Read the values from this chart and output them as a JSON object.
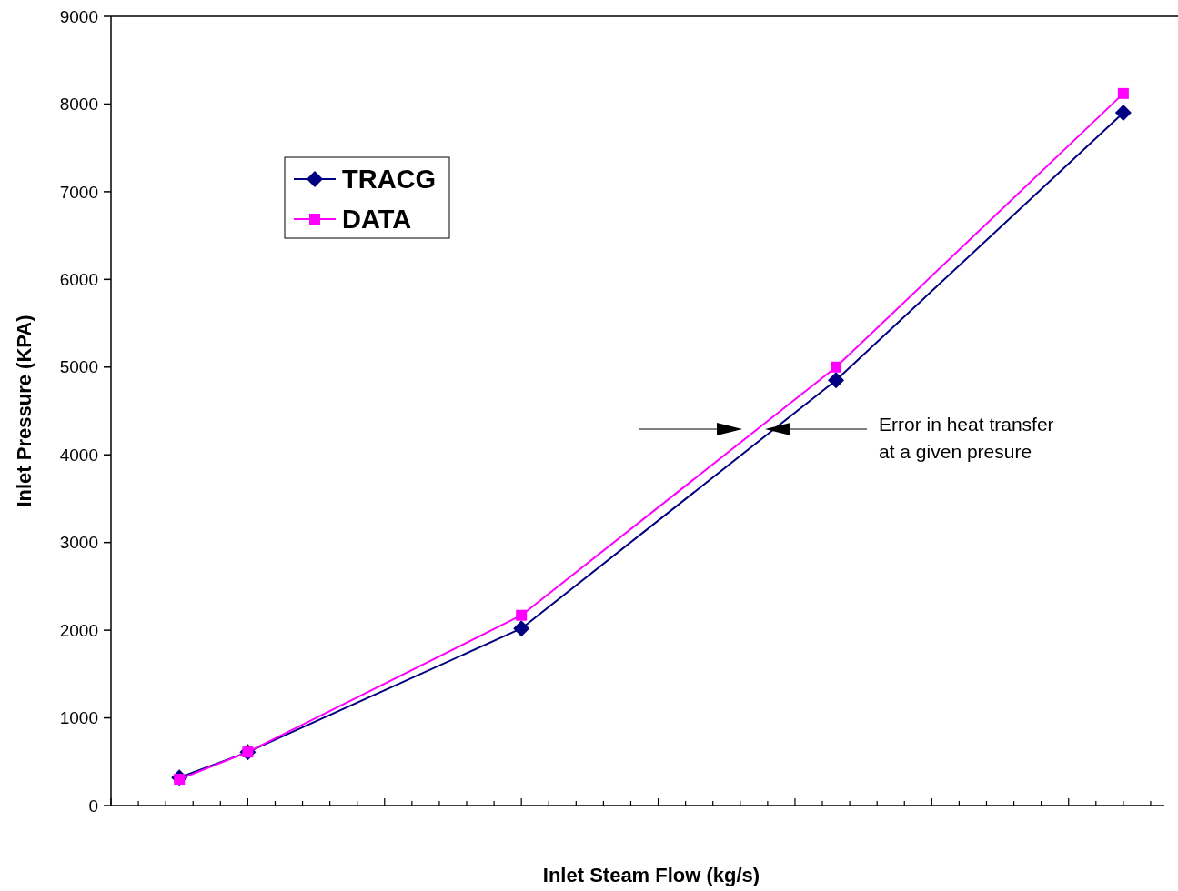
{
  "chart_data": {
    "type": "line",
    "xlabel": "Inlet Steam Flow (kg/s)",
    "ylabel": "Inlet Pressure (KPA)",
    "categories": [
      null,
      null,
      null,
      null,
      null,
      null,
      null,
      null,
      null,
      null,
      null,
      null,
      null,
      null,
      null,
      null,
      null,
      null,
      null,
      null,
      null,
      null,
      null,
      null,
      null,
      null,
      null,
      null,
      null,
      null,
      null,
      null,
      null,
      null,
      null,
      null,
      null,
      null,
      null,
      null,
      null,
      null,
      null,
      null,
      null,
      null,
      null,
      null,
      null,
      null,
      null,
      null,
      null,
      null,
      null,
      null,
      null,
      null,
      null,
      null,
      null,
      null,
      null,
      null,
      null,
      null,
      null,
      null,
      null,
      null,
      null,
      null,
      null,
      null,
      null,
      null,
      null,
      null
    ],
    "series": [
      {
        "name": "TRACG",
        "color": "#000080",
        "marker": "diamond",
        "values": [
          null,
          null,
          null,
          null,
          null,
          320,
          null,
          null,
          null,
          null,
          610,
          null,
          null,
          null,
          null,
          null,
          null,
          null,
          null,
          null,
          null,
          null,
          null,
          null,
          null,
          null,
          null,
          null,
          null,
          null,
          2020,
          null,
          null,
          null,
          null,
          null,
          null,
          null,
          null,
          null,
          null,
          null,
          null,
          null,
          null,
          null,
          null,
          null,
          null,
          null,
          null,
          null,
          null,
          4850,
          null,
          null,
          null,
          null,
          null,
          null,
          null,
          null,
          null,
          null,
          null,
          null,
          null,
          null,
          null,
          null,
          null,
          null,
          null,
          null,
          7900,
          null,
          null,
          null
        ]
      },
      {
        "name": "DATA",
        "color": "#ff00ff",
        "marker": "square",
        "values": [
          null,
          null,
          null,
          null,
          null,
          300,
          null,
          null,
          null,
          null,
          610,
          null,
          null,
          null,
          null,
          null,
          null,
          null,
          null,
          null,
          null,
          null,
          null,
          null,
          null,
          null,
          null,
          null,
          null,
          null,
          2170,
          null,
          null,
          null,
          null,
          null,
          null,
          null,
          null,
          null,
          null,
          null,
          null,
          null,
          null,
          null,
          null,
          null,
          null,
          null,
          null,
          null,
          null,
          5000,
          null,
          null,
          null,
          null,
          null,
          null,
          null,
          null,
          null,
          null,
          null,
          null,
          null,
          null,
          null,
          null,
          null,
          null,
          null,
          null,
          8120,
          null,
          null,
          null
        ]
      }
    ],
    "ylim": [
      0,
      9000
    ],
    "yticks": [
      0,
      1000,
      2000,
      3000,
      4000,
      5000,
      6000,
      7000,
      8000,
      9000
    ],
    "grid": false,
    "legend": "top left",
    "line_style": "solid",
    "annotations": [
      "Error in heat transfer\nat a given presure"
    ]
  }
}
